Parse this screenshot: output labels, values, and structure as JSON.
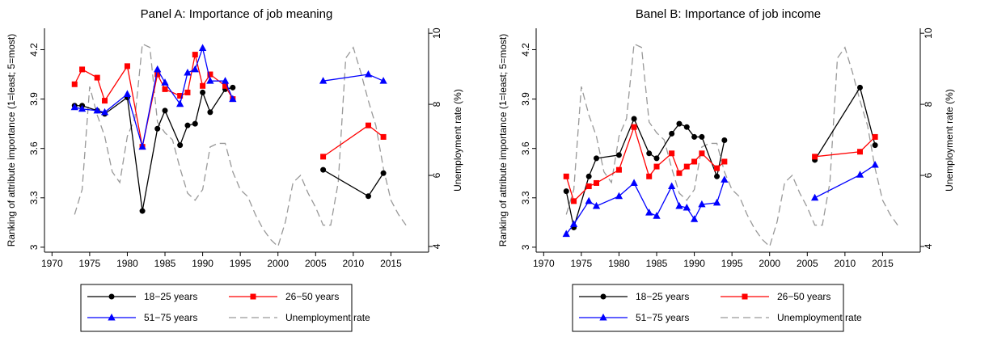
{
  "chart_data": [
    {
      "type": "line",
      "title": "Panel A: Importance of job meaning",
      "y_label": "Ranking of attribute importance (1=least; 5=most)",
      "y2_label": "Unemployment rate (%)",
      "xlim": [
        1969,
        2020
      ],
      "xticks": [
        1970,
        1975,
        1980,
        1985,
        1990,
        1995,
        2000,
        2005,
        2010,
        2015
      ],
      "ylim": [
        2.97,
        4.33
      ],
      "yticks": [
        3,
        3.3,
        3.6,
        3.9,
        4.2
      ],
      "y2lim": [
        3.84,
        10.14
      ],
      "y2ticks": [
        4,
        6,
        8,
        10
      ],
      "series": [
        {
          "name": "18−25 years",
          "color": "#000000",
          "marker": "circle",
          "x": [
            1973,
            1974,
            1976,
            1977,
            1980,
            1982,
            1984,
            1985,
            1987,
            1988,
            1989,
            1990,
            1991,
            1993,
            1994,
            2006,
            2012,
            2014
          ],
          "values": [
            3.86,
            3.86,
            3.83,
            3.81,
            3.91,
            3.22,
            3.72,
            3.83,
            3.62,
            3.74,
            3.75,
            3.94,
            3.82,
            3.96,
            3.97,
            3.47,
            3.31,
            3.45
          ]
        },
        {
          "name": "26−50 years",
          "color": "#ff0000",
          "marker": "square",
          "x": [
            1973,
            1974,
            1976,
            1977,
            1980,
            1982,
            1984,
            1985,
            1987,
            1988,
            1989,
            1990,
            1991,
            1993,
            1994,
            2006,
            2012,
            2014
          ],
          "values": [
            3.99,
            4.08,
            4.03,
            3.89,
            4.1,
            3.61,
            4.05,
            3.96,
            3.92,
            3.94,
            4.17,
            3.98,
            4.05,
            3.98,
            3.9,
            3.55,
            3.74,
            3.67
          ]
        },
        {
          "name": "51−75 years",
          "color": "#0000ff",
          "marker": "triangle",
          "x": [
            1973,
            1974,
            1976,
            1977,
            1980,
            1982,
            1984,
            1985,
            1987,
            1988,
            1989,
            1990,
            1991,
            1993,
            1994,
            2006,
            2012,
            2014
          ],
          "values": [
            3.85,
            3.84,
            3.83,
            3.82,
            3.93,
            3.61,
            4.08,
            4.0,
            3.87,
            4.06,
            4.08,
            4.21,
            4.01,
            4.01,
            3.9,
            4.01,
            4.05,
            4.01
          ]
        },
        {
          "name": "Unemployment rate",
          "color": "#999999",
          "dashed": true,
          "axis": "y2",
          "x": [
            1973,
            1974,
            1975,
            1976,
            1977,
            1978,
            1979,
            1980,
            1981,
            1982,
            1983,
            1984,
            1985,
            1986,
            1987,
            1988,
            1989,
            1990,
            1991,
            1992,
            1993,
            1994,
            1995,
            1996,
            1997,
            1998,
            1999,
            2000,
            2001,
            2002,
            2003,
            2004,
            2005,
            2006,
            2007,
            2008,
            2009,
            2010,
            2011,
            2012,
            2013,
            2014,
            2015,
            2016,
            2017
          ],
          "values": [
            4.9,
            5.6,
            8.5,
            7.7,
            7.1,
            6.1,
            5.8,
            7.1,
            7.6,
            9.7,
            9.6,
            7.5,
            7.2,
            7.0,
            6.2,
            5.5,
            5.3,
            5.6,
            6.8,
            6.9,
            6.9,
            6.1,
            5.6,
            5.4,
            4.9,
            4.5,
            4.2,
            4.0,
            4.7,
            5.8,
            6.0,
            5.5,
            5.1,
            4.6,
            4.6,
            5.8,
            9.3,
            9.6,
            8.9,
            8.1,
            7.4,
            6.2,
            5.3,
            4.9,
            4.6
          ]
        }
      ]
    },
    {
      "type": "line",
      "title": "Banel B: Importance of job income",
      "y_label": "Ranking of attribute importance (1=least; 5=most)",
      "y2_label": "Unemployment rate (%)",
      "xlim": [
        1969,
        2020
      ],
      "xticks": [
        1970,
        1975,
        1980,
        1985,
        1990,
        1995,
        2000,
        2005,
        2010,
        2015
      ],
      "ylim": [
        2.97,
        4.33
      ],
      "yticks": [
        3,
        3.3,
        3.6,
        3.9,
        4.2
      ],
      "y2lim": [
        3.84,
        10.14
      ],
      "y2ticks": [
        4,
        6,
        8,
        10
      ],
      "series": [
        {
          "name": "18−25 years",
          "color": "#000000",
          "marker": "circle",
          "x": [
            1973,
            1974,
            1976,
            1977,
            1980,
            1982,
            1984,
            1985,
            1987,
            1988,
            1989,
            1990,
            1991,
            1993,
            1994,
            2006,
            2012,
            2014
          ],
          "values": [
            3.34,
            3.12,
            3.43,
            3.54,
            3.56,
            3.78,
            3.57,
            3.54,
            3.69,
            3.75,
            3.73,
            3.67,
            3.67,
            3.43,
            3.65,
            3.53,
            3.97,
            3.62
          ]
        },
        {
          "name": "26−50 years",
          "color": "#ff0000",
          "marker": "square",
          "x": [
            1973,
            1974,
            1976,
            1977,
            1980,
            1982,
            1984,
            1985,
            1987,
            1988,
            1989,
            1990,
            1991,
            1993,
            1994,
            2006,
            2012,
            2014
          ],
          "values": [
            3.43,
            3.28,
            3.37,
            3.39,
            3.47,
            3.73,
            3.43,
            3.49,
            3.57,
            3.45,
            3.49,
            3.52,
            3.57,
            3.48,
            3.52,
            3.55,
            3.58,
            3.67
          ]
        },
        {
          "name": "51−75 years",
          "color": "#0000ff",
          "marker": "triangle",
          "x": [
            1973,
            1974,
            1976,
            1977,
            1980,
            1982,
            1984,
            1985,
            1987,
            1988,
            1989,
            1990,
            1991,
            1993,
            1994,
            2006,
            2012,
            2014
          ],
          "values": [
            3.08,
            3.14,
            3.28,
            3.25,
            3.31,
            3.39,
            3.21,
            3.19,
            3.37,
            3.25,
            3.24,
            3.17,
            3.26,
            3.27,
            3.41,
            3.3,
            3.44,
            3.5
          ]
        },
        {
          "name": "Unemployment rate",
          "color": "#999999",
          "dashed": true,
          "axis": "y2",
          "x": [
            1973,
            1974,
            1975,
            1976,
            1977,
            1978,
            1979,
            1980,
            1981,
            1982,
            1983,
            1984,
            1985,
            1986,
            1987,
            1988,
            1989,
            1990,
            1991,
            1992,
            1993,
            1994,
            1995,
            1996,
            1997,
            1998,
            1999,
            2000,
            2001,
            2002,
            2003,
            2004,
            2005,
            2006,
            2007,
            2008,
            2009,
            2010,
            2011,
            2012,
            2013,
            2014,
            2015,
            2016,
            2017
          ],
          "values": [
            4.9,
            5.6,
            8.5,
            7.7,
            7.1,
            6.1,
            5.8,
            7.1,
            7.6,
            9.7,
            9.6,
            7.5,
            7.2,
            7.0,
            6.2,
            5.5,
            5.3,
            5.6,
            6.8,
            6.9,
            6.9,
            6.1,
            5.6,
            5.4,
            4.9,
            4.5,
            4.2,
            4.0,
            4.7,
            5.8,
            6.0,
            5.5,
            5.1,
            4.6,
            4.6,
            5.8,
            9.3,
            9.6,
            8.9,
            8.1,
            7.4,
            6.2,
            5.3,
            4.9,
            4.6
          ]
        }
      ]
    }
  ]
}
